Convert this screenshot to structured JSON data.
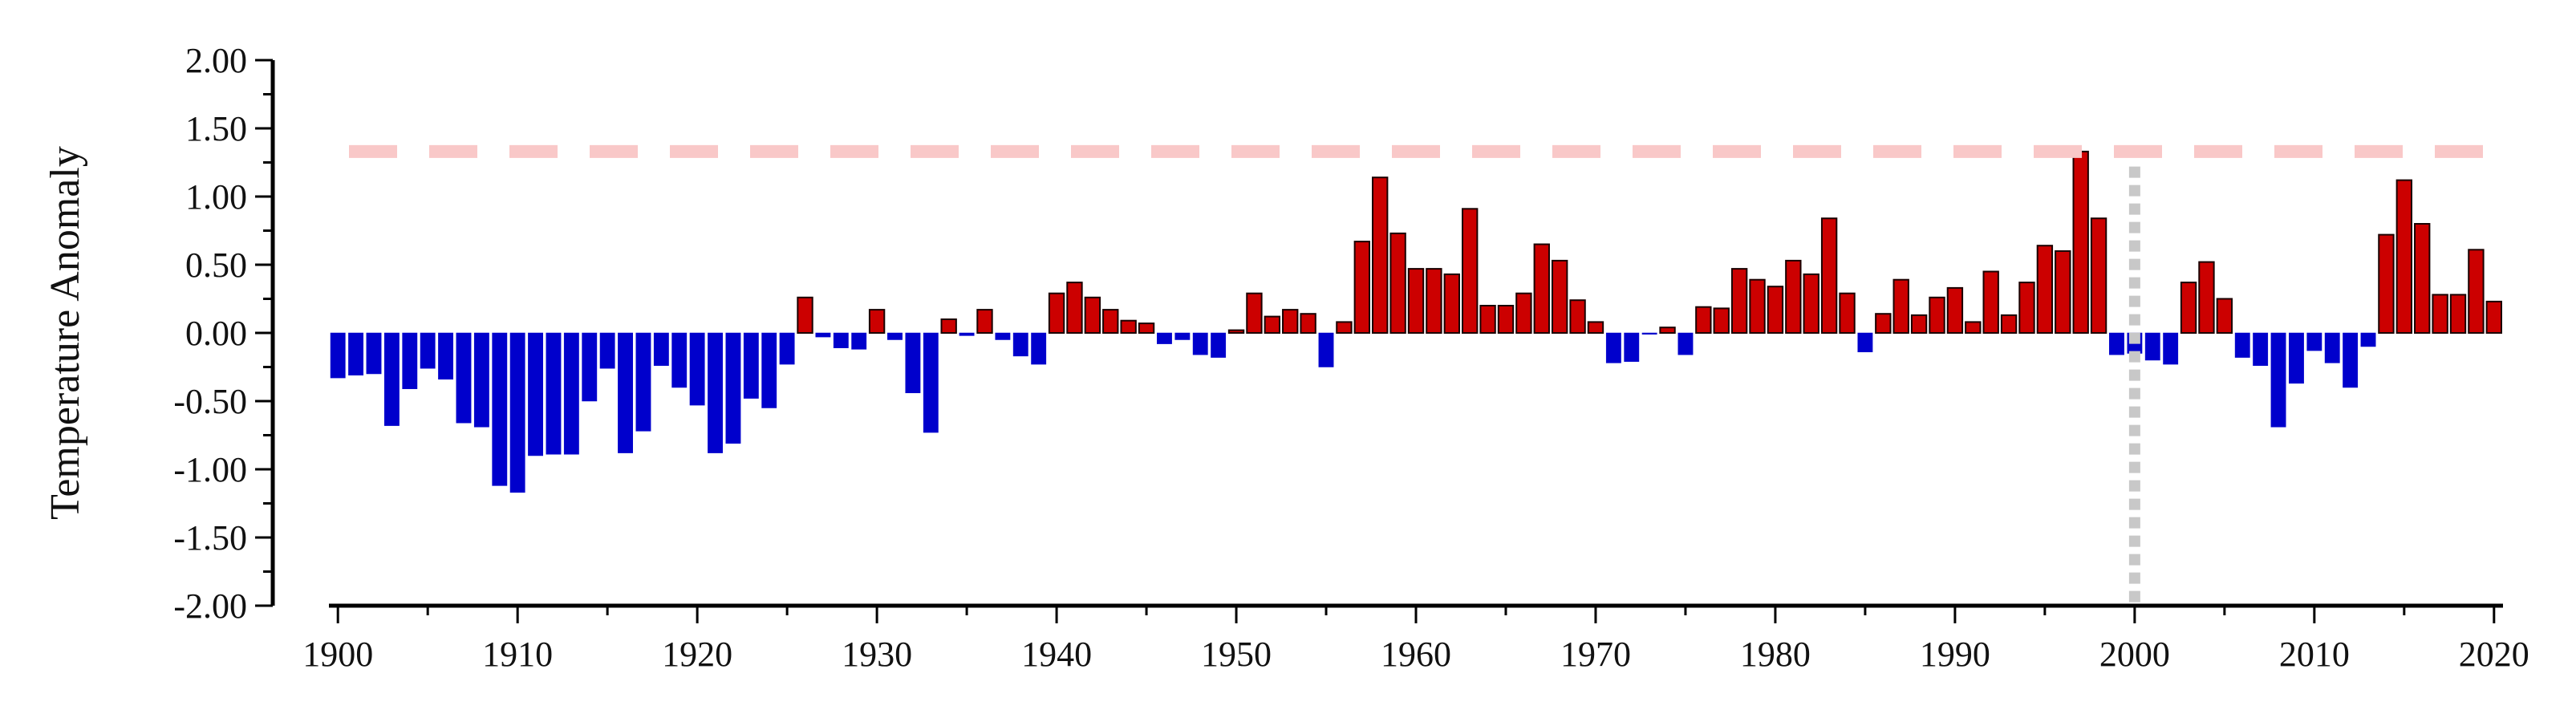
{
  "chart_data": {
    "type": "bar",
    "title": "",
    "xlabel": "",
    "ylabel": "Temperature Anomaly",
    "ylim": [
      -2.0,
      2.0
    ],
    "xlim": [
      1899.5,
      2020.5
    ],
    "y_ticks": [
      "2.00",
      "1.50",
      "1.00",
      "0.50",
      "0.00",
      "-0.50",
      "-1.00",
      "-1.50",
      "-2.00"
    ],
    "x_ticks": [
      "1900",
      "1910",
      "1920",
      "1930",
      "1940",
      "1950",
      "1960",
      "1970",
      "1980",
      "1990",
      "2000",
      "2010",
      "2020"
    ],
    "grid": false,
    "legend": "none",
    "reference_line_y": 1.33,
    "reference_line_x": 2000,
    "colors": {
      "positive": "#cc0000",
      "negative": "#0000cc",
      "reference_line": "#f9c8c8",
      "vertical_marker": "#c8c8c8"
    },
    "years": [
      1900,
      1901,
      1902,
      1903,
      1904,
      1905,
      1906,
      1907,
      1908,
      1909,
      1910,
      1911,
      1912,
      1913,
      1914,
      1915,
      1916,
      1917,
      1918,
      1919,
      1920,
      1921,
      1922,
      1923,
      1924,
      1925,
      1926,
      1927,
      1928,
      1929,
      1930,
      1931,
      1932,
      1933,
      1934,
      1935,
      1936,
      1937,
      1938,
      1939,
      1940,
      1941,
      1942,
      1943,
      1944,
      1945,
      1946,
      1947,
      1948,
      1949,
      1950,
      1951,
      1952,
      1953,
      1954,
      1955,
      1956,
      1957,
      1958,
      1959,
      1960,
      1961,
      1962,
      1963,
      1964,
      1965,
      1966,
      1967,
      1968,
      1969,
      1970,
      1971,
      1972,
      1973,
      1974,
      1975,
      1976,
      1977,
      1978,
      1979,
      1980,
      1981,
      1982,
      1983,
      1984,
      1985,
      1986,
      1987,
      1988,
      1989,
      1990,
      1991,
      1992,
      1993,
      1994,
      1995,
      1996,
      1997,
      1998,
      1999,
      2000,
      2001,
      2002,
      2003,
      2004,
      2005,
      2006,
      2007,
      2008,
      2009,
      2010,
      2011,
      2012,
      2013,
      2014,
      2015,
      2016,
      2017,
      2018,
      2019,
      2020
    ],
    "values": [
      -0.33,
      -0.31,
      -0.3,
      -0.68,
      -0.41,
      -0.26,
      -0.34,
      -0.66,
      -0.69,
      -1.12,
      -1.17,
      -0.9,
      -0.89,
      -0.89,
      -0.5,
      -0.26,
      -0.88,
      -0.72,
      -0.24,
      -0.4,
      -0.53,
      -0.88,
      -0.81,
      -0.48,
      -0.55,
      -0.23,
      0.26,
      -0.03,
      -0.11,
      -0.12,
      0.17,
      -0.05,
      -0.44,
      -0.73,
      0.1,
      -0.02,
      0.17,
      -0.05,
      -0.17,
      -0.23,
      0.29,
      0.37,
      0.26,
      0.17,
      0.09,
      0.07,
      -0.08,
      -0.05,
      -0.16,
      -0.18,
      0.02,
      0.29,
      0.12,
      0.17,
      0.14,
      -0.25,
      0.08,
      0.67,
      1.14,
      0.73,
      0.47,
      0.47,
      0.43,
      0.91,
      0.2,
      0.2,
      0.29,
      0.65,
      0.53,
      0.24,
      0.08,
      -0.22,
      -0.21,
      -0.01,
      0.04,
      -0.16,
      0.19,
      0.18,
      0.47,
      0.39,
      0.34,
      0.53,
      0.43,
      0.84,
      0.29,
      -0.14,
      0.14,
      0.39,
      0.13,
      0.26,
      0.33,
      0.08,
      0.45,
      0.13,
      0.37,
      0.64,
      0.6,
      1.33,
      0.84,
      -0.16,
      -0.15,
      -0.2,
      -0.23,
      0.37,
      0.52,
      0.25,
      -0.18,
      -0.24,
      -0.69,
      -0.37,
      -0.13,
      -0.22,
      -0.4,
      -0.1,
      0.72,
      1.12,
      0.8,
      0.28,
      0.28,
      0.61,
      0.23
    ]
  }
}
